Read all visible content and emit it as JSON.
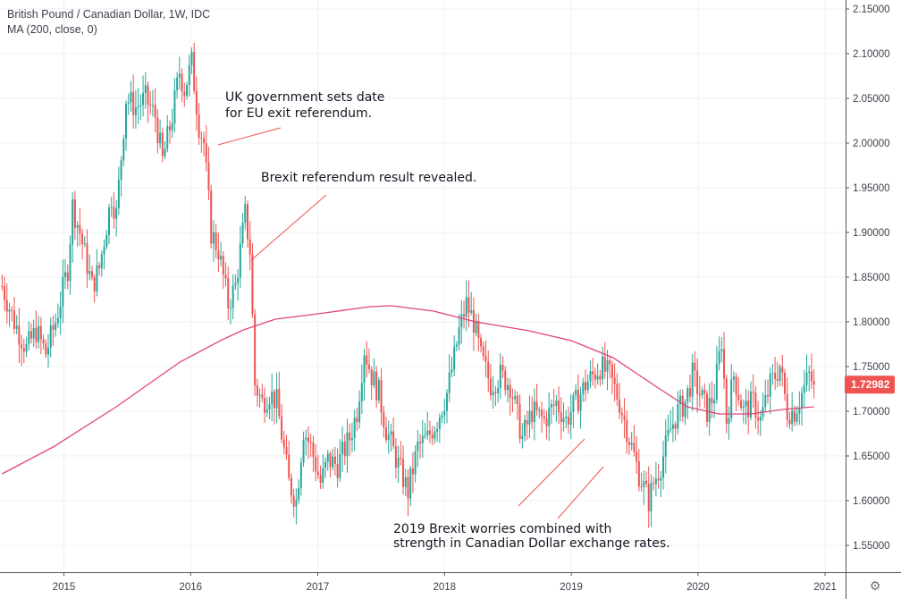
{
  "legend": {
    "title": "British Pound / Canadian Dollar, 1W, IDC",
    "indicator": "MA (200, close, 0)"
  },
  "colors": {
    "up": "#26a69a",
    "down": "#ef5350",
    "ma": "#e0457b",
    "grid": "#eef0f4",
    "axis_line": "#50535e",
    "annotation_line": "#ef5350",
    "price_tag": "#ef5350"
  },
  "price_tag": "1.72982",
  "annotations": [
    {
      "text_lines": [
        "UK government sets date",
        "for EU exit referendum."
      ]
    },
    {
      "text_lines": [
        "Brexit referendum result revealed."
      ]
    },
    {
      "text_lines": [
        "2019 Brexit worries combined with",
        "strength in Canadian Dollar exchange rates."
      ]
    }
  ],
  "chart_data": {
    "type": "candlestick",
    "title": "British Pound / Canadian Dollar, 1W, IDC",
    "series_name": "MA (200, close, 0)",
    "x_range": [
      "2014-07-01",
      "2021-03-01"
    ],
    "x_ticks": [
      "2015",
      "2016",
      "2017",
      "2018",
      "2019",
      "2020",
      "2021"
    ],
    "y_range": [
      1.52,
      2.16
    ],
    "y_ticks": [
      "1.55000",
      "1.60000",
      "1.65000",
      "1.70000",
      "1.75000",
      "1.80000",
      "1.85000",
      "1.90000",
      "1.95000",
      "2.00000",
      "2.05000",
      "2.10000",
      "2.15000"
    ],
    "grid": true,
    "last_price": 1.72982,
    "price_anchors": [
      {
        "date": "2014-07-07",
        "close": 1.84
      },
      {
        "date": "2014-08-11",
        "close": 1.8
      },
      {
        "date": "2014-09-15",
        "close": 1.77
      },
      {
        "date": "2014-10-13",
        "close": 1.79
      },
      {
        "date": "2014-11-10",
        "close": 1.765
      },
      {
        "date": "2014-12-08",
        "close": 1.8
      },
      {
        "date": "2015-01-12",
        "close": 1.86
      },
      {
        "date": "2015-01-26",
        "close": 1.93
      },
      {
        "date": "2015-02-16",
        "close": 1.9
      },
      {
        "date": "2015-03-23",
        "close": 1.84
      },
      {
        "date": "2015-04-13",
        "close": 1.86
      },
      {
        "date": "2015-05-18",
        "close": 1.94
      },
      {
        "date": "2015-06-01",
        "close": 1.92
      },
      {
        "date": "2015-06-29",
        "close": 2.05
      },
      {
        "date": "2015-07-27",
        "close": 2.04
      },
      {
        "date": "2015-08-24",
        "close": 2.05
      },
      {
        "date": "2015-09-21",
        "close": 2.03
      },
      {
        "date": "2015-10-12",
        "close": 1.98
      },
      {
        "date": "2015-11-09",
        "close": 2.03
      },
      {
        "date": "2015-11-30",
        "close": 2.08
      },
      {
        "date": "2015-12-14",
        "close": 2.06
      },
      {
        "date": "2016-01-04",
        "close": 2.09
      },
      {
        "date": "2016-01-25",
        "close": 2.02
      },
      {
        "date": "2016-02-08",
        "close": 2.0
      },
      {
        "date": "2016-02-29",
        "close": 1.9
      },
      {
        "date": "2016-03-21",
        "close": 1.88
      },
      {
        "date": "2016-04-18",
        "close": 1.82
      },
      {
        "date": "2016-05-09",
        "close": 1.84
      },
      {
        "date": "2016-06-06",
        "close": 1.92
      },
      {
        "date": "2016-06-20",
        "close": 1.88
      },
      {
        "date": "2016-07-04",
        "close": 1.73
      },
      {
        "date": "2016-07-25",
        "close": 1.71
      },
      {
        "date": "2016-08-15",
        "close": 1.72
      },
      {
        "date": "2016-09-05",
        "close": 1.71
      },
      {
        "date": "2016-10-10",
        "close": 1.62
      },
      {
        "date": "2016-10-31",
        "close": 1.6
      },
      {
        "date": "2016-11-21",
        "close": 1.68
      },
      {
        "date": "2016-12-12",
        "close": 1.66
      },
      {
        "date": "2017-01-09",
        "close": 1.62
      },
      {
        "date": "2017-01-30",
        "close": 1.645
      },
      {
        "date": "2017-02-27",
        "close": 1.64
      },
      {
        "date": "2017-04-03",
        "close": 1.67
      },
      {
        "date": "2017-04-24",
        "close": 1.7
      },
      {
        "date": "2017-05-15",
        "close": 1.77
      },
      {
        "date": "2017-06-05",
        "close": 1.74
      },
      {
        "date": "2017-06-26",
        "close": 1.72
      },
      {
        "date": "2017-07-17",
        "close": 1.68
      },
      {
        "date": "2017-08-21",
        "close": 1.64
      },
      {
        "date": "2017-09-18",
        "close": 1.61
      },
      {
        "date": "2017-10-16",
        "close": 1.66
      },
      {
        "date": "2017-11-13",
        "close": 1.67
      },
      {
        "date": "2017-12-11",
        "close": 1.69
      },
      {
        "date": "2018-01-08",
        "close": 1.72
      },
      {
        "date": "2018-01-29",
        "close": 1.76
      },
      {
        "date": "2018-02-12",
        "close": 1.79
      },
      {
        "date": "2018-03-05",
        "close": 1.82
      },
      {
        "date": "2018-03-26",
        "close": 1.8
      },
      {
        "date": "2018-04-16",
        "close": 1.76
      },
      {
        "date": "2018-05-14",
        "close": 1.73
      },
      {
        "date": "2018-06-11",
        "close": 1.74
      },
      {
        "date": "2018-07-09",
        "close": 1.73
      },
      {
        "date": "2018-08-13",
        "close": 1.67
      },
      {
        "date": "2018-09-10",
        "close": 1.7
      },
      {
        "date": "2018-10-15",
        "close": 1.69
      },
      {
        "date": "2018-11-19",
        "close": 1.71
      },
      {
        "date": "2018-12-17",
        "close": 1.69
      },
      {
        "date": "2019-01-14",
        "close": 1.71
      },
      {
        "date": "2019-02-11",
        "close": 1.73
      },
      {
        "date": "2019-03-04",
        "close": 1.74
      },
      {
        "date": "2019-03-25",
        "close": 1.75
      },
      {
        "date": "2019-04-22",
        "close": 1.74
      },
      {
        "date": "2019-05-20",
        "close": 1.71
      },
      {
        "date": "2019-06-17",
        "close": 1.67
      },
      {
        "date": "2019-07-15",
        "close": 1.63
      },
      {
        "date": "2019-08-12",
        "close": 1.6
      },
      {
        "date": "2019-08-26",
        "close": 1.62
      },
      {
        "date": "2019-09-16",
        "close": 1.64
      },
      {
        "date": "2019-10-14",
        "close": 1.68
      },
      {
        "date": "2019-11-04",
        "close": 1.7
      },
      {
        "date": "2019-11-25",
        "close": 1.71
      },
      {
        "date": "2019-12-16",
        "close": 1.74
      },
      {
        "date": "2020-01-06",
        "close": 1.72
      },
      {
        "date": "2020-01-27",
        "close": 1.7
      },
      {
        "date": "2020-02-17",
        "close": 1.72
      },
      {
        "date": "2020-03-09",
        "close": 1.78
      },
      {
        "date": "2020-03-23",
        "close": 1.69
      },
      {
        "date": "2020-04-13",
        "close": 1.74
      },
      {
        "date": "2020-05-11",
        "close": 1.7
      },
      {
        "date": "2020-06-08",
        "close": 1.71
      },
      {
        "date": "2020-06-29",
        "close": 1.69
      },
      {
        "date": "2020-07-27",
        "close": 1.73
      },
      {
        "date": "2020-08-24",
        "close": 1.75
      },
      {
        "date": "2020-09-14",
        "close": 1.7
      },
      {
        "date": "2020-10-05",
        "close": 1.7
      },
      {
        "date": "2020-10-26",
        "close": 1.72
      },
      {
        "date": "2020-11-16",
        "close": 1.74
      },
      {
        "date": "2020-11-30",
        "close": 1.72982
      }
    ],
    "ma_200": [
      {
        "date": "2014-07-07",
        "value": 1.63
      },
      {
        "date": "2014-12-01",
        "value": 1.66
      },
      {
        "date": "2015-06-01",
        "value": 1.705
      },
      {
        "date": "2015-12-01",
        "value": 1.755
      },
      {
        "date": "2016-04-01",
        "value": 1.78
      },
      {
        "date": "2016-06-01",
        "value": 1.791
      },
      {
        "date": "2016-09-01",
        "value": 1.803
      },
      {
        "date": "2017-01-02",
        "value": 1.809
      },
      {
        "date": "2017-06-01",
        "value": 1.817
      },
      {
        "date": "2017-08-01",
        "value": 1.818
      },
      {
        "date": "2017-12-01",
        "value": 1.812
      },
      {
        "date": "2018-04-01",
        "value": 1.8
      },
      {
        "date": "2018-09-01",
        "value": 1.79
      },
      {
        "date": "2019-01-01",
        "value": 1.779
      },
      {
        "date": "2019-05-01",
        "value": 1.76
      },
      {
        "date": "2019-09-01",
        "value": 1.728
      },
      {
        "date": "2019-12-01",
        "value": 1.705
      },
      {
        "date": "2020-03-01",
        "value": 1.697
      },
      {
        "date": "2020-06-01",
        "value": 1.697
      },
      {
        "date": "2020-09-01",
        "value": 1.702
      },
      {
        "date": "2020-11-30",
        "value": 1.705
      }
    ]
  }
}
